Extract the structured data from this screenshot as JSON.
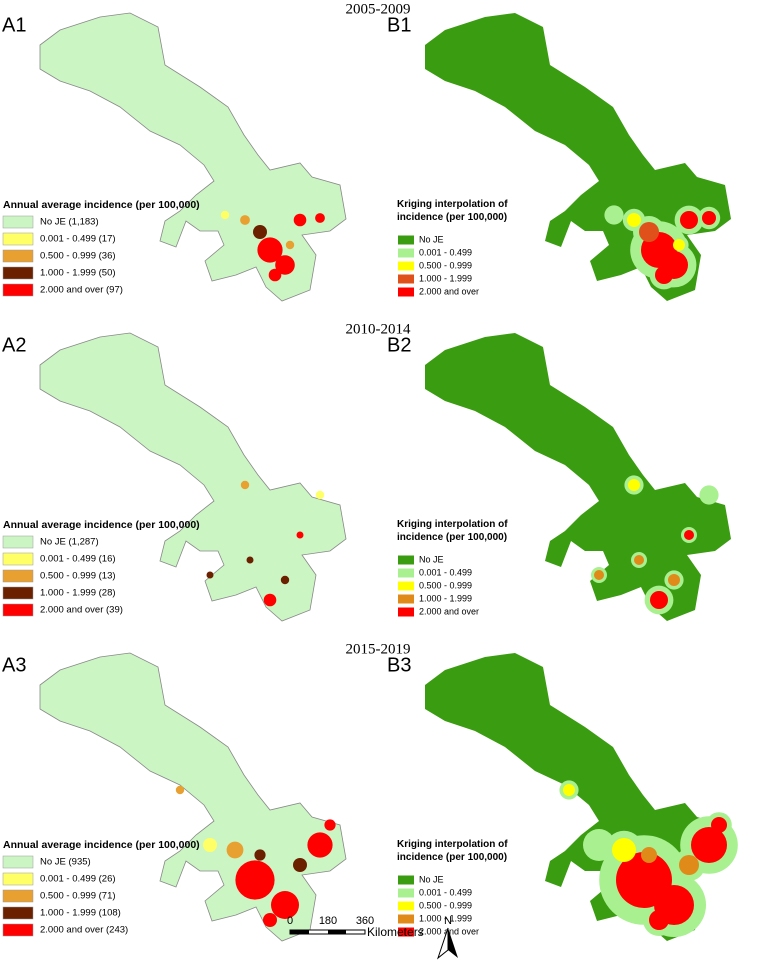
{
  "rows": [
    {
      "period": "2005-2009",
      "a": {
        "label": "A1",
        "legend_title": "Annual average incidence (per 100,000)",
        "legend": [
          {
            "label": "No JE (1,183)",
            "color": "#ccf5c4"
          },
          {
            "label": "0.001 - 0.499 (17)",
            "color": "#ffff66"
          },
          {
            "label": "0.500 - 0.999 (36)",
            "color": "#e8a030"
          },
          {
            "label": "1.000 - 1.999 (50)",
            "color": "#6b2000"
          },
          {
            "label": "2.000 and over (97)",
            "color": "#ff0000"
          }
        ]
      },
      "b": {
        "label": "B1",
        "legend_title": "Kriging interpolation of incidence (per 100,000)",
        "legend": [
          {
            "label": "No JE",
            "color": "#3a9c10"
          },
          {
            "label": "0.001 - 0.499",
            "color": "#a8f090"
          },
          {
            "label": "0.500 - 0.999",
            "color": "#ffff00"
          },
          {
            "label": "1.000 - 1.999",
            "color": "#e0501a"
          },
          {
            "label": "2.000 and over",
            "color": "#ff0000"
          }
        ]
      }
    },
    {
      "period": "2010-2014",
      "a": {
        "label": "A2",
        "legend_title": "Annual average incidence (per 100,000)",
        "legend": [
          {
            "label": "No JE (1,287)",
            "color": "#ccf5c4"
          },
          {
            "label": "0.001 - 0.499 (16)",
            "color": "#ffff66"
          },
          {
            "label": "0.500 - 0.999 (13)",
            "color": "#e8a030"
          },
          {
            "label": "1.000 - 1.999 (28)",
            "color": "#6b2000"
          },
          {
            "label": "2.000 and over (39)",
            "color": "#ff0000"
          }
        ]
      },
      "b": {
        "label": "B2",
        "legend_title": "Kriging interpolation of incidence (per 100,000)",
        "legend": [
          {
            "label": "No JE",
            "color": "#3a9c10"
          },
          {
            "label": "0.001 - 0.499",
            "color": "#a8f090"
          },
          {
            "label": "0.500 - 0.999",
            "color": "#ffff00"
          },
          {
            "label": "1.000 - 1.999",
            "color": "#e08a1a"
          },
          {
            "label": "2.000 and over",
            "color": "#ff0000"
          }
        ]
      }
    },
    {
      "period": "2015-2019",
      "a": {
        "label": "A3",
        "legend_title": "Annual average incidence (per 100,000)",
        "legend": [
          {
            "label": "No JE (935)",
            "color": "#ccf5c4"
          },
          {
            "label": "0.001 - 0.499 (26)",
            "color": "#ffff66"
          },
          {
            "label": "0.500 - 0.999 (71)",
            "color": "#e8a030"
          },
          {
            "label": "1.000 - 1.999 (108)",
            "color": "#6b2000"
          },
          {
            "label": "2.000 and over (243)",
            "color": "#ff0000"
          }
        ]
      },
      "b": {
        "label": "B3",
        "legend_title": "Kriging interpolation of incidence (per 100,000)",
        "legend": [
          {
            "label": "No JE",
            "color": "#3a9c10"
          },
          {
            "label": "0.001 - 0.499",
            "color": "#a8f090"
          },
          {
            "label": "0.500 - 0.999",
            "color": "#ffff00"
          },
          {
            "label": "1.000 - 1.999",
            "color": "#e08a1a"
          },
          {
            "label": "2.000 and over",
            "color": "#ff0000"
          }
        ]
      }
    }
  ],
  "scale_bar": {
    "ticks": [
      "0",
      "180",
      "360"
    ],
    "unit": "Kilometers"
  },
  "north": "N"
}
